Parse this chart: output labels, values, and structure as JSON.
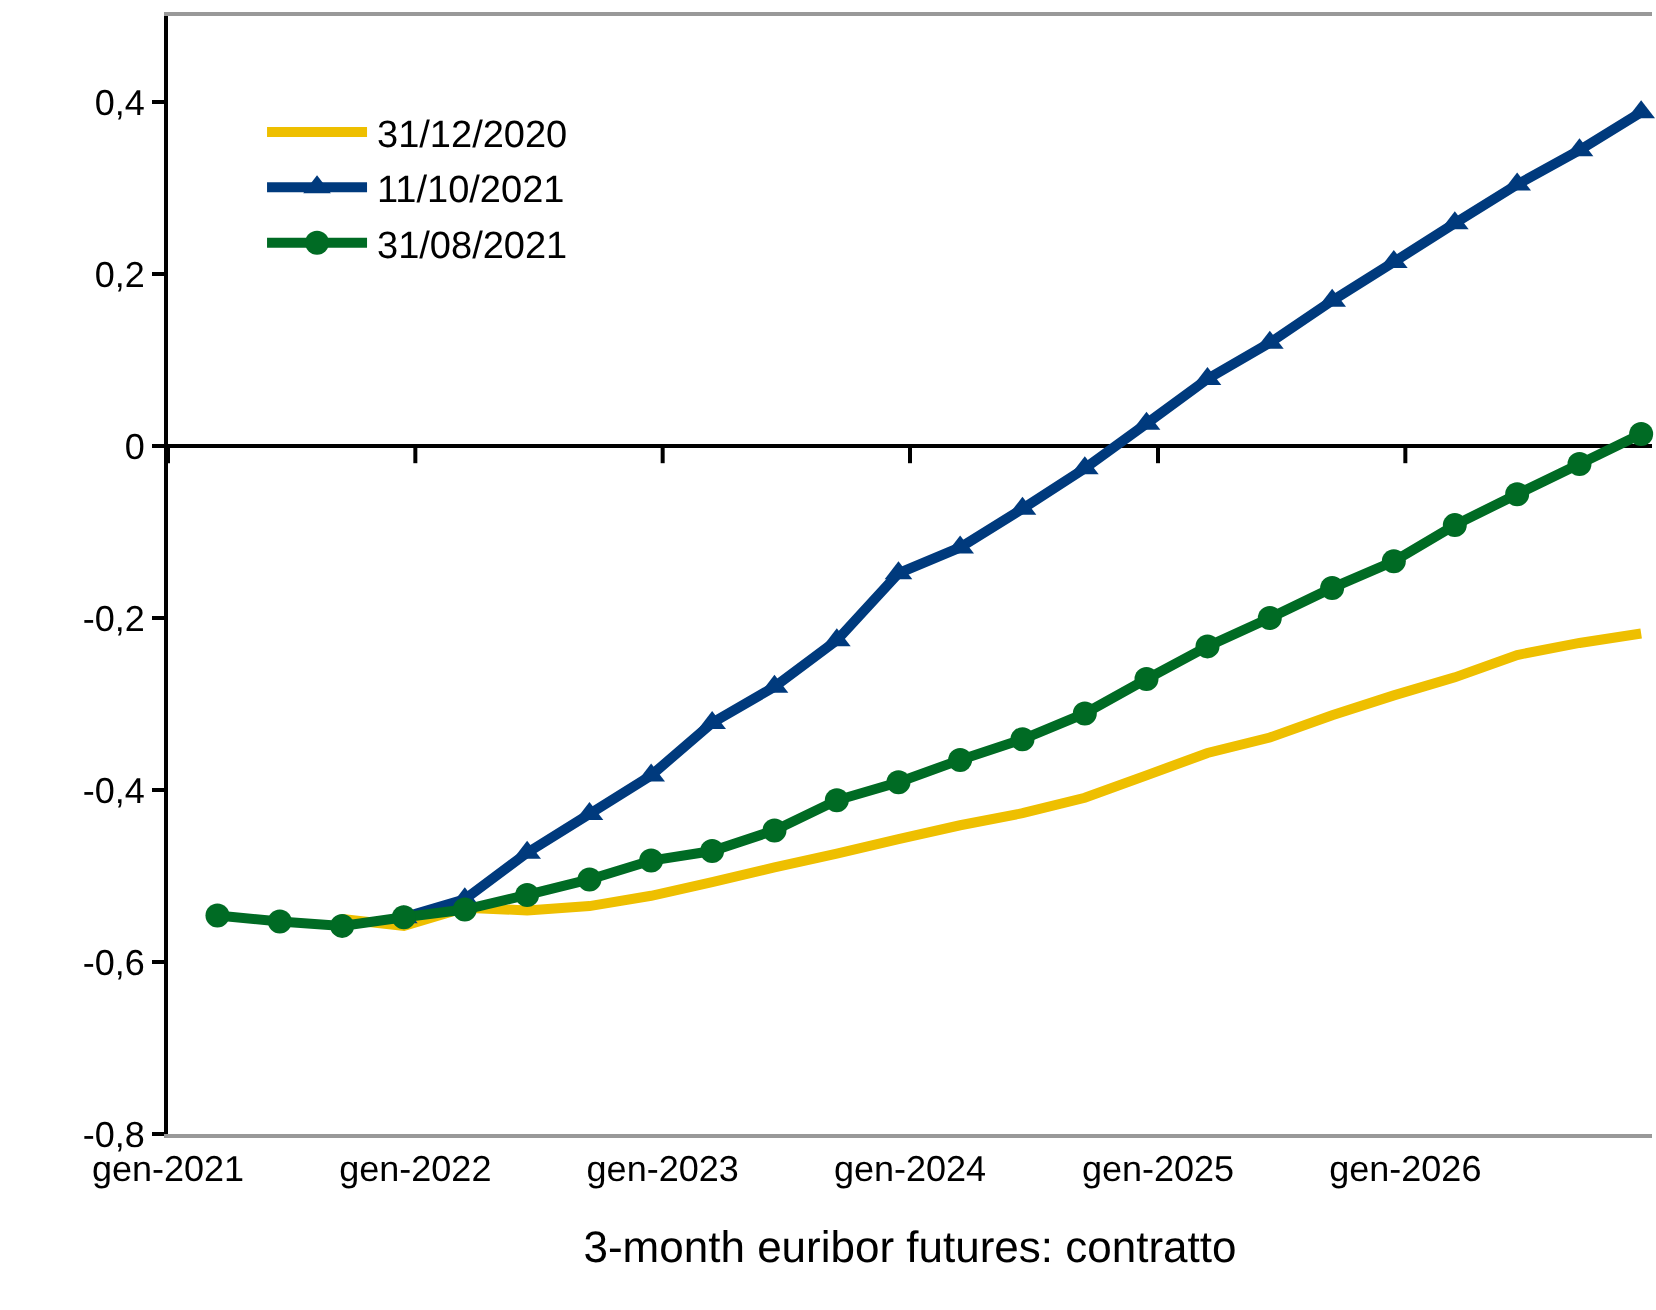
{
  "chart_data": {
    "type": "line",
    "xlabel": "3-month euribor futures: contratto",
    "x": [
      "2021-03-15",
      "2021-06-15",
      "2021-09-15",
      "2021-12-15",
      "2022-03-15",
      "2022-06-15",
      "2022-09-15",
      "2022-12-15",
      "2023-03-15",
      "2023-06-15",
      "2023-09-15",
      "2023-12-15",
      "2024-03-15",
      "2024-06-15",
      "2024-09-15",
      "2024-12-15",
      "2025-03-15",
      "2025-06-15",
      "2025-09-15",
      "2025-12-15",
      "2026-03-15",
      "2026-06-15",
      "2026-09-15",
      "2026-12-15"
    ],
    "series": [
      {
        "name": "31/12/2020",
        "color": "#eebf00",
        "marker": "none",
        "values": [
          null,
          null,
          -0.55,
          -0.558,
          -0.537,
          -0.54,
          -0.535,
          -0.523,
          -0.507,
          -0.49,
          -0.474,
          -0.457,
          -0.441,
          -0.427,
          -0.409,
          -0.383,
          -0.357,
          -0.339,
          -0.313,
          -0.29,
          -0.269,
          -0.243,
          -0.229,
          -0.218
        ]
      },
      {
        "name": "11/10/2021",
        "color": "#003a7d",
        "marker": "triangle",
        "values": [
          null,
          null,
          null,
          -0.548,
          -0.527,
          -0.473,
          -0.428,
          -0.383,
          -0.322,
          -0.28,
          -0.226,
          -0.148,
          -0.118,
          -0.073,
          -0.026,
          0.026,
          0.078,
          0.12,
          0.169,
          0.214,
          0.259,
          0.304,
          0.344,
          0.388
        ]
      },
      {
        "name": "31/08/2021",
        "color": "#006b24",
        "marker": "circle",
        "values": [
          -0.546,
          -0.553,
          -0.558,
          -0.548,
          -0.539,
          -0.522,
          -0.504,
          -0.482,
          -0.471,
          -0.447,
          -0.412,
          -0.391,
          -0.365,
          -0.341,
          -0.311,
          -0.271,
          -0.233,
          -0.2,
          -0.165,
          -0.134,
          -0.092,
          -0.056,
          -0.021,
          0.014
        ]
      }
    ],
    "xlim": [
      "2021-01-01",
      "2026-12-31"
    ],
    "xticks": [
      {
        "value": "2021-01-01",
        "label": "gen-2021"
      },
      {
        "value": "2022-01-01",
        "label": "gen-2022"
      },
      {
        "value": "2023-01-01",
        "label": "gen-2023"
      },
      {
        "value": "2024-01-01",
        "label": "gen-2024"
      },
      {
        "value": "2025-01-01",
        "label": "gen-2025"
      },
      {
        "value": "2026-01-01",
        "label": "gen-2026"
      }
    ],
    "ylim": [
      -0.8,
      0.5
    ],
    "yticks": [
      {
        "value": -0.8,
        "label": "-0,8"
      },
      {
        "value": -0.6,
        "label": "-0,6"
      },
      {
        "value": -0.4,
        "label": "-0,4"
      },
      {
        "value": -0.2,
        "label": "-0,2"
      },
      0,
      {
        "value": 0.2,
        "label": "0,2"
      },
      {
        "value": 0.4,
        "label": "0,4"
      }
    ],
    "ref_lines": [
      {
        "axis": "y",
        "value": 0,
        "color": "#000000"
      }
    ],
    "legend": "top left",
    "grid": false
  }
}
